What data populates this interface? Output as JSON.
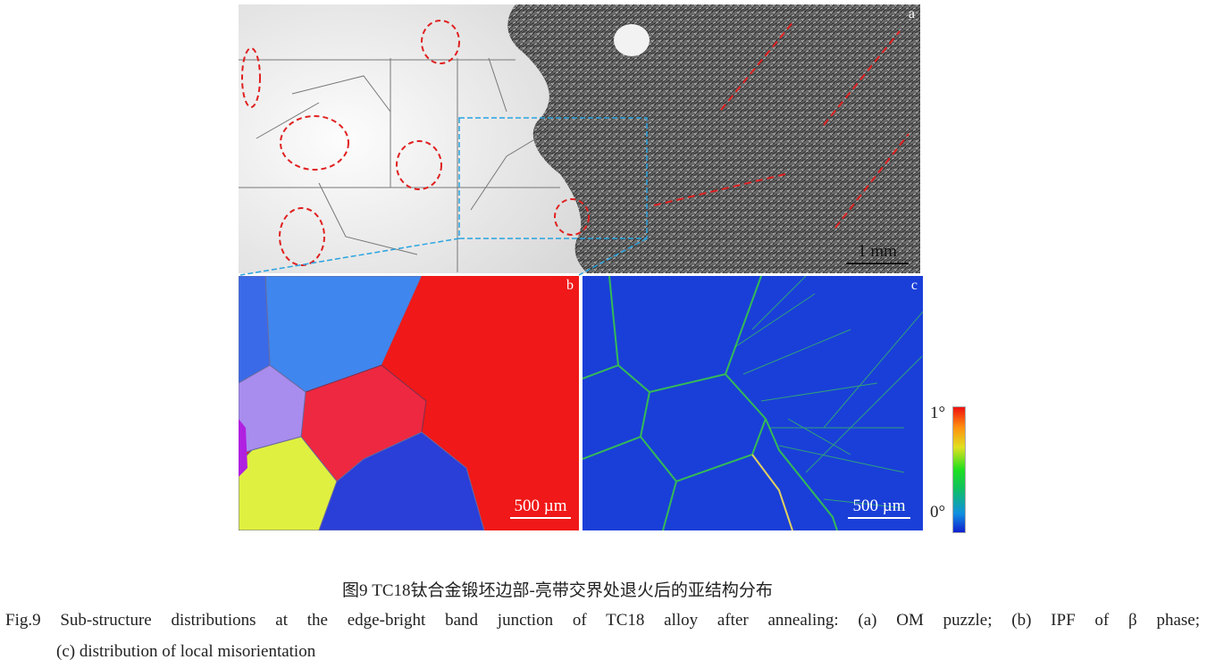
{
  "panels": {
    "a": {
      "label": "a",
      "scale_bar": "1 mm"
    },
    "b": {
      "label": "b",
      "scale_bar": "500 µm"
    },
    "c": {
      "label": "c",
      "scale_bar": "500 µm"
    }
  },
  "colorbar": {
    "max_label": "1°",
    "min_label": "0°",
    "colors": [
      "#1020d0",
      "#20e020",
      "#e0e020",
      "#f01010"
    ]
  },
  "caption": {
    "chinese": "图9  TC18钛合金锻坯边部-亮带交界处退火后的亚结构分布",
    "english_line1": "Fig.9 Sub-structure distributions at the edge-bright band junction of TC18 alloy after annealing: (a) OM puzzle; (b) IPF of β phase;",
    "english_line2": "(c) distribution of local misorientation"
  }
}
